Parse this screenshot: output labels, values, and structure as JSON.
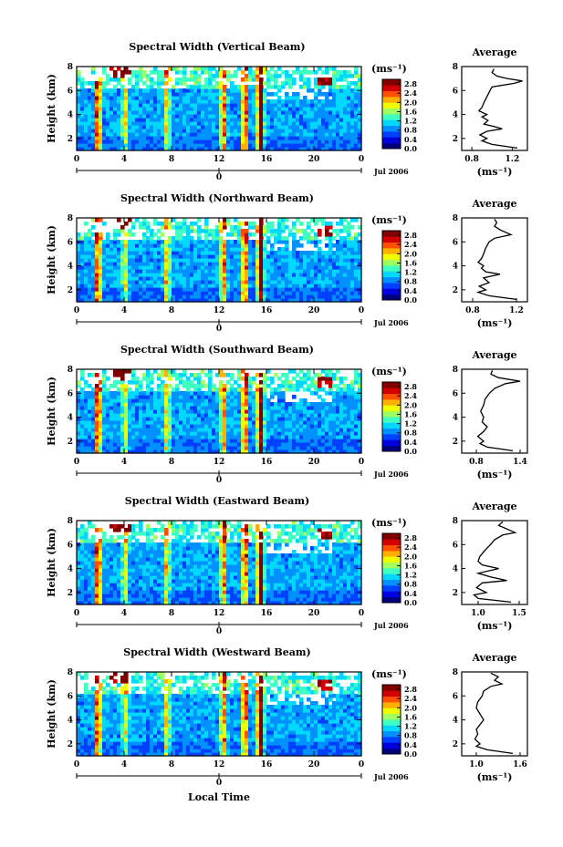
{
  "figure": {
    "xlabel": "Local Time",
    "date_label": "Jul 2006",
    "date_tick": "0",
    "units_label": "(ms⁻¹)",
    "profile_title": "Average",
    "profile_xlabel": "(ms⁻¹)",
    "ylabel": "Height (km)"
  },
  "colors": {
    "colormap": [
      "#00007f",
      "#0000e0",
      "#0040ff",
      "#0090ff",
      "#00d8ff",
      "#40ffc0",
      "#a0ff60",
      "#f0ff00",
      "#ffb000",
      "#ff5000",
      "#d00000",
      "#800000"
    ],
    "background": "#ffffff",
    "axes": "#000000"
  },
  "chart_data": [
    {
      "type": "heatmap",
      "title": "Spectral Width (Vertical Beam)",
      "x_ticks": [
        "0",
        "4",
        "8",
        "12",
        "16",
        "20",
        "0"
      ],
      "xlim": [
        0,
        24
      ],
      "y_ticks": [
        "2",
        "4",
        "6",
        "8"
      ],
      "ylim": [
        1,
        8
      ],
      "colorbar_ticks": [
        "0.0",
        "0.4",
        "0.8",
        "1.2",
        "1.6",
        "2.0",
        "2.4",
        "2.8"
      ],
      "clim": [
        0,
        3.0
      ],
      "profile": {
        "title": "Average",
        "x_ticks": [
          "0.8",
          "1.2"
        ],
        "xlim": [
          0.7,
          1.35
        ],
        "height": [
          1.2,
          1.5,
          1.8,
          2.0,
          2.3,
          2.6,
          2.8,
          3.0,
          3.2,
          3.5,
          3.8,
          4.0,
          4.3,
          4.6,
          5.0,
          5.5,
          6.0,
          6.3,
          6.6,
          6.8,
          7.0,
          7.2,
          7.5,
          7.8
        ],
        "values": [
          1.25,
          1.0,
          0.9,
          0.95,
          0.88,
          0.95,
          1.1,
          1.02,
          0.92,
          0.96,
          0.9,
          0.95,
          0.87,
          0.9,
          0.92,
          0.95,
          0.98,
          1.0,
          1.22,
          1.3,
          1.15,
          1.05,
          1.0,
          1.02
        ]
      }
    },
    {
      "type": "heatmap",
      "title": "Spectral Width (Northward Beam)",
      "x_ticks": [
        "0",
        "4",
        "8",
        "12",
        "16",
        "20",
        "0"
      ],
      "xlim": [
        0,
        24
      ],
      "y_ticks": [
        "2",
        "4",
        "6",
        "8"
      ],
      "ylim": [
        1,
        8
      ],
      "colorbar_ticks": [
        "0.0",
        "0.4",
        "0.8",
        "1.2",
        "1.6",
        "2.0",
        "2.4",
        "2.8"
      ],
      "clim": [
        0,
        3.0
      ],
      "profile": {
        "title": "Average",
        "x_ticks": [
          "0.8",
          "1.2"
        ],
        "xlim": [
          0.7,
          1.3
        ],
        "height": [
          1.2,
          1.5,
          1.8,
          2.0,
          2.3,
          2.6,
          3.0,
          3.3,
          3.5,
          3.8,
          4.0,
          4.3,
          4.6,
          5.0,
          5.5,
          6.0,
          6.3,
          6.6,
          7.0,
          7.3,
          7.6,
          7.9
        ],
        "values": [
          1.2,
          0.95,
          0.85,
          0.92,
          0.86,
          0.95,
          0.9,
          1.05,
          0.92,
          0.88,
          0.9,
          0.85,
          0.88,
          0.9,
          0.92,
          0.95,
          1.0,
          1.15,
          1.05,
          1.0,
          1.02,
          1.0
        ]
      }
    },
    {
      "type": "heatmap",
      "title": "Spectral Width (Southward Beam)",
      "x_ticks": [
        "0",
        "4",
        "8",
        "12",
        "16",
        "20",
        "0"
      ],
      "xlim": [
        0,
        24
      ],
      "y_ticks": [
        "2",
        "4",
        "6",
        "8"
      ],
      "ylim": [
        1,
        8
      ],
      "colorbar_ticks": [
        "0.0",
        "0.4",
        "0.8",
        "1.2",
        "1.6",
        "2.0",
        "2.4",
        "2.8"
      ],
      "clim": [
        0,
        3.0
      ],
      "profile": {
        "title": "Average",
        "x_ticks": [
          "0.8",
          "1.4"
        ],
        "xlim": [
          0.6,
          1.5
        ],
        "height": [
          1.2,
          1.5,
          1.8,
          2.0,
          2.4,
          2.8,
          3.2,
          3.6,
          4.0,
          4.5,
          5.0,
          5.5,
          6.0,
          6.4,
          6.8,
          7.0,
          7.3,
          7.6,
          7.9
        ],
        "values": [
          1.3,
          0.95,
          0.85,
          0.9,
          0.82,
          0.9,
          0.95,
          0.88,
          0.9,
          0.86,
          0.9,
          0.92,
          0.98,
          1.05,
          1.2,
          1.4,
          1.1,
          1.0,
          1.02
        ]
      }
    },
    {
      "type": "heatmap",
      "title": "Spectral Width (Eastward Beam)",
      "x_ticks": [
        "0",
        "4",
        "8",
        "12",
        "16",
        "20",
        "0"
      ],
      "xlim": [
        0,
        24
      ],
      "y_ticks": [
        "2",
        "4",
        "6",
        "8"
      ],
      "ylim": [
        1,
        8
      ],
      "colorbar_ticks": [
        "0.0",
        "0.4",
        "0.8",
        "1.2",
        "1.6",
        "2.0",
        "2.4",
        "2.8"
      ],
      "clim": [
        0,
        3.0
      ],
      "profile": {
        "title": "Average",
        "x_ticks": [
          "1.0",
          "1.5"
        ],
        "xlim": [
          0.8,
          1.6
        ],
        "height": [
          1.2,
          1.5,
          1.8,
          2.0,
          2.4,
          2.8,
          3.0,
          3.3,
          3.6,
          4.0,
          4.3,
          4.6,
          5.0,
          5.5,
          6.0,
          6.4,
          6.8,
          7.0,
          7.3,
          7.6,
          7.9
        ],
        "values": [
          1.4,
          1.0,
          0.95,
          1.1,
          0.98,
          1.05,
          1.35,
          1.15,
          1.0,
          1.25,
          1.05,
          1.0,
          1.02,
          1.08,
          1.15,
          1.2,
          1.3,
          1.45,
          1.35,
          1.25,
          1.3
        ]
      }
    },
    {
      "type": "heatmap",
      "title": "Spectral Width (Westward Beam)",
      "x_ticks": [
        "0",
        "4",
        "8",
        "12",
        "16",
        "20",
        "0"
      ],
      "xlim": [
        0,
        24
      ],
      "y_ticks": [
        "2",
        "4",
        "6",
        "8"
      ],
      "ylim": [
        1,
        8
      ],
      "colorbar_ticks": [
        "0.0",
        "0.4",
        "0.8",
        "1.2",
        "1.6",
        "2.0",
        "2.4",
        "2.8"
      ],
      "clim": [
        0,
        3.0
      ],
      "profile": {
        "title": "Average",
        "x_ticks": [
          "1.0",
          "1.6"
        ],
        "xlim": [
          0.8,
          1.7
        ],
        "height": [
          1.2,
          1.5,
          1.8,
          2.0,
          2.4,
          2.8,
          3.2,
          3.6,
          4.0,
          4.5,
          5.0,
          5.5,
          6.0,
          6.4,
          6.8,
          7.0,
          7.3,
          7.6,
          7.9
        ],
        "values": [
          1.5,
          1.15,
          1.0,
          1.05,
          0.98,
          1.02,
          1.0,
          1.05,
          1.1,
          1.05,
          1.0,
          1.02,
          1.08,
          1.1,
          1.2,
          1.35,
          1.25,
          1.3,
          1.2
        ]
      }
    }
  ]
}
